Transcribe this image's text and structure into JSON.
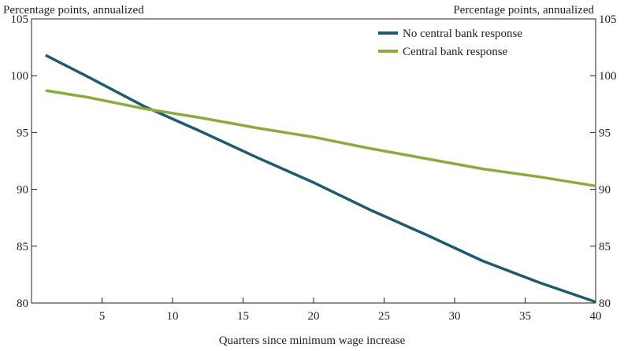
{
  "chart_data": {
    "type": "line",
    "y_unit_left": "Percentage points, annualized",
    "y_unit_right": "Percentage points, annualized",
    "xlabel": "Quarters since minimum wage increase",
    "xlim": [
      0,
      40
    ],
    "ylim": [
      80,
      105
    ],
    "x_ticks": [
      5,
      10,
      15,
      20,
      25,
      30,
      35,
      40
    ],
    "y_ticks": [
      80,
      85,
      90,
      95,
      100,
      105
    ],
    "grid": false,
    "legend_position": "top-right",
    "series": [
      {
        "name": "No central bank response",
        "color": "#1f5a70",
        "x": [
          1,
          4,
          8,
          12,
          16,
          20,
          24,
          28,
          32,
          36,
          40
        ],
        "values": [
          101.8,
          99.9,
          97.3,
          95.1,
          92.8,
          90.6,
          88.2,
          86.0,
          83.7,
          81.8,
          80.1
        ]
      },
      {
        "name": "Central bank response",
        "color": "#8aac3e",
        "x": [
          1,
          4,
          8,
          12,
          16,
          20,
          24,
          28,
          32,
          36,
          40
        ],
        "values": [
          98.7,
          98.1,
          97.1,
          96.3,
          95.4,
          94.6,
          93.6,
          92.7,
          91.8,
          91.1,
          90.3
        ]
      }
    ]
  }
}
